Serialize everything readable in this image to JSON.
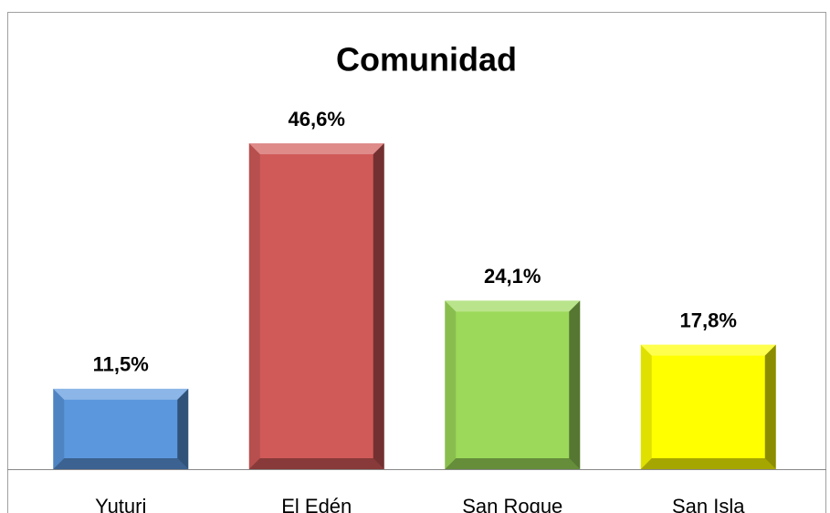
{
  "chart_data": {
    "type": "bar",
    "title": "Comunidad",
    "categories": [
      "Yuturi",
      "El Edén",
      "San Roque",
      "San Isla"
    ],
    "values": [
      11.5,
      46.6,
      24.1,
      17.8
    ],
    "value_labels": [
      "11,5%",
      "46,6%",
      "24,1%",
      "17,8%"
    ],
    "colors": [
      "#5b97dd",
      "#d05a58",
      "#9cd95a",
      "#ffff00"
    ]
  }
}
